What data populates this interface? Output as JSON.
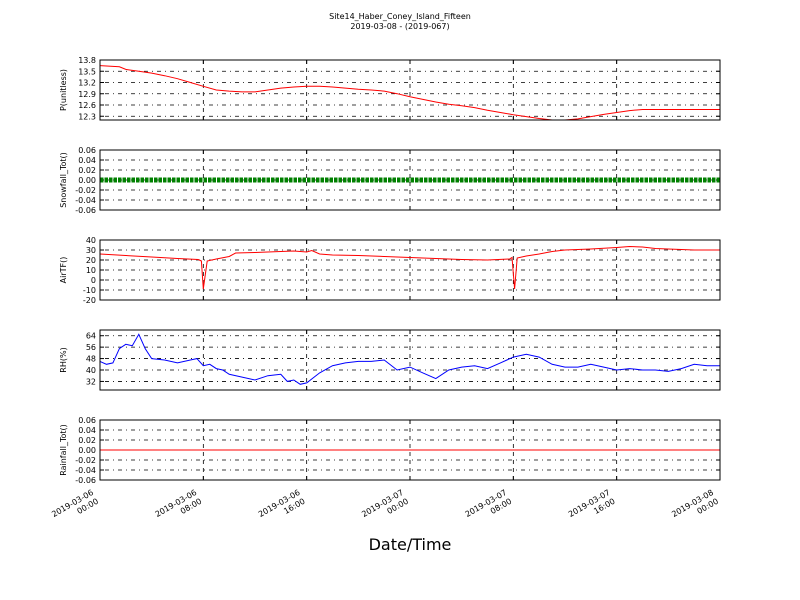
{
  "chart_data": {
    "type": "line",
    "title": "Site14_Haber_Coney_Island_Fifteen",
    "subtitle": "2019-03-08 - (2019-067)",
    "xlabel": "Date/Time",
    "x_ticks": [
      {
        "value": 0,
        "date": "2019-03-06",
        "time": "00:00"
      },
      {
        "value": 8,
        "date": "2019-03-06",
        "time": "08:00"
      },
      {
        "value": 16,
        "date": "2019-03-06",
        "time": "16:00"
      },
      {
        "value": 24,
        "date": "2019-03-07",
        "time": "00:00"
      },
      {
        "value": 32,
        "date": "2019-03-07",
        "time": "08:00"
      },
      {
        "value": 40,
        "date": "2019-03-07",
        "time": "16:00"
      },
      {
        "value": 48,
        "date": "2019-03-08",
        "time": "00:00"
      }
    ],
    "xlim": [
      0,
      48
    ],
    "grid": true,
    "panels": [
      {
        "ylabel": "P(unitless)",
        "ylim": [
          12.2,
          13.8
        ],
        "yticks": [
          "13.8",
          "13.5",
          "13.2",
          "12.9",
          "12.6",
          "12.3"
        ],
        "color": "#ff0000",
        "series": {
          "x": [
            0,
            1.5,
            2,
            3,
            4,
            5,
            6,
            7,
            8,
            9,
            10,
            11,
            12,
            13,
            14,
            15,
            16,
            17,
            18,
            19,
            20,
            21,
            22,
            23,
            24,
            25,
            26,
            27,
            28,
            29,
            30,
            31,
            32,
            33,
            34,
            35,
            36,
            37,
            38,
            39,
            40,
            41,
            42,
            44,
            46,
            48
          ],
          "y": [
            13.65,
            13.62,
            13.55,
            13.5,
            13.45,
            13.38,
            13.3,
            13.2,
            13.1,
            13.0,
            12.97,
            12.95,
            12.95,
            13.0,
            13.05,
            13.08,
            13.1,
            13.1,
            13.08,
            13.05,
            13.02,
            13.0,
            12.97,
            12.9,
            12.82,
            12.75,
            12.68,
            12.62,
            12.58,
            12.53,
            12.46,
            12.4,
            12.34,
            12.29,
            12.24,
            12.2,
            12.2,
            12.23,
            12.29,
            12.35,
            12.4,
            12.45,
            12.48,
            12.48,
            12.48,
            12.48
          ]
        }
      },
      {
        "ylabel": "Snowfall_Tot()",
        "ylim": [
          -0.06,
          0.06
        ],
        "yticks": [
          "0.06",
          "0.04",
          "0.02",
          "0.00",
          "-0.02",
          "-0.04",
          "-0.06"
        ],
        "color": "#008000",
        "marker": "dense-dots",
        "series": {
          "x": [
            0,
            48
          ],
          "y": [
            0,
            0
          ]
        }
      },
      {
        "ylabel": "AirTF()",
        "ylim": [
          -20,
          40
        ],
        "yticks": [
          "40",
          "30",
          "20",
          "10",
          "0",
          "-10",
          "-20"
        ],
        "color": "#ff0000",
        "series": {
          "x": [
            0,
            2,
            4,
            6,
            7.6,
            7.85,
            8.0,
            8.3,
            9,
            10,
            10.5,
            12,
            14,
            15,
            16,
            16.4,
            17,
            18,
            20,
            22,
            24,
            26,
            28,
            30,
            31.7,
            31.9,
            32.1,
            32.3,
            33,
            34,
            35,
            36,
            38,
            40,
            41,
            42,
            43,
            44,
            46,
            48
          ],
          "y": [
            26,
            24.5,
            23,
            21.5,
            20.5,
            19,
            -9,
            19,
            21,
            23.5,
            27,
            27.5,
            28.5,
            29,
            28,
            29.5,
            26,
            25,
            24.5,
            23.5,
            22.5,
            21.5,
            20.5,
            20,
            21,
            22.5,
            -9,
            22,
            24,
            26,
            28.5,
            30,
            31,
            32.5,
            33.5,
            33,
            31.5,
            31,
            30,
            30
          ]
        }
      },
      {
        "ylabel": "RH(%)",
        "ylim": [
          26,
          68
        ],
        "yticks": [
          "64",
          "56",
          "48",
          "40",
          "32"
        ],
        "color": "#0000ff",
        "series": {
          "x": [
            0,
            0.5,
            1,
            1.5,
            2,
            2.5,
            3,
            3.5,
            4,
            5,
            6,
            7,
            7.5,
            8,
            8.5,
            9,
            9.5,
            10,
            11,
            12,
            13,
            14,
            14.5,
            15,
            15.5,
            16,
            17,
            18,
            19,
            20,
            21,
            22,
            23,
            24,
            25,
            26,
            27,
            28,
            29,
            30,
            31,
            31.5,
            32,
            33,
            34,
            35,
            36,
            37,
            38,
            39,
            40,
            41,
            42,
            43,
            44,
            45,
            46,
            47,
            48
          ],
          "y": [
            46,
            44,
            45,
            55,
            58,
            57,
            65,
            55,
            48,
            47,
            45,
            47,
            48,
            43,
            44,
            41,
            40,
            37,
            35,
            33,
            36,
            37,
            32,
            33,
            30,
            31,
            38,
            43,
            45,
            46,
            46,
            47,
            40,
            42,
            38,
            34,
            40,
            42,
            43,
            41,
            45,
            47,
            49,
            51,
            49,
            44,
            42,
            42,
            44,
            42,
            40,
            41,
            40,
            40,
            39,
            41,
            44,
            43,
            43
          ]
        }
      },
      {
        "ylabel": "Rainfall_Tot()",
        "ylim": [
          -0.06,
          0.06
        ],
        "yticks": [
          "0.06",
          "0.04",
          "0.02",
          "0.00",
          "-0.02",
          "-0.04",
          "-0.06"
        ],
        "color": "#ff0000",
        "series": {
          "x": [
            0,
            48
          ],
          "y": [
            0,
            0
          ]
        }
      }
    ]
  }
}
